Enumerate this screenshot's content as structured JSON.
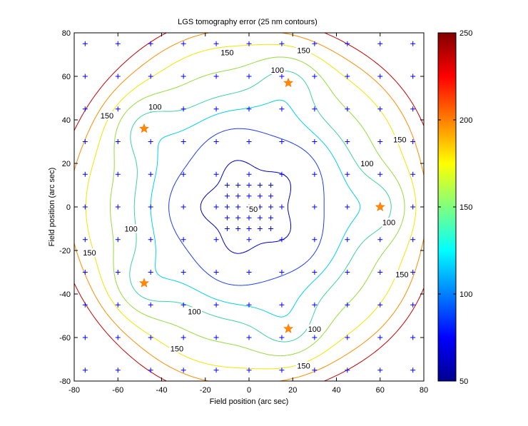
{
  "chart_data": {
    "type": "contour",
    "title": "LGS tomography error (25 nm contours)",
    "xlabel": "Field position (arc sec)",
    "ylabel": "Field position (arc sec)",
    "xlim": [
      -80,
      80
    ],
    "ylim": [
      -80,
      80
    ],
    "xticks": [
      "-80",
      "-60",
      "-40",
      "-20",
      "0",
      "20",
      "40",
      "60",
      "80"
    ],
    "yticks": [
      "-80",
      "-60",
      "-40",
      "-20",
      "0",
      "20",
      "40",
      "60",
      "80"
    ],
    "colorbar": {
      "range": [
        50,
        250
      ],
      "ticks": [
        "50",
        "100",
        "150",
        "200",
        "250"
      ]
    },
    "contour_levels": [
      50,
      75,
      100,
      125,
      150,
      175,
      200,
      225
    ],
    "level_colors": {
      "50": "#0000c8",
      "75": "#1e3cff",
      "100": "#00d2e6",
      "125": "#3cd2a0",
      "150": "#96dc3c",
      "175": "#f0e600",
      "200": "#ff8c00",
      "225": "#c80000"
    },
    "contour_labels": [
      {
        "text": "150",
        "x": -10,
        "y": 71
      },
      {
        "text": "150",
        "x": 25,
        "y": 72
      },
      {
        "text": "100",
        "x": 13,
        "y": 63
      },
      {
        "text": "100",
        "x": -43,
        "y": 46
      },
      {
        "text": "150",
        "x": -65,
        "y": 42
      },
      {
        "text": "150",
        "x": 69,
        "y": 31
      },
      {
        "text": "100",
        "x": 54,
        "y": 20
      },
      {
        "text": "50",
        "x": 2,
        "y": -1
      },
      {
        "text": "100",
        "x": 64,
        "y": -7
      },
      {
        "text": "100",
        "x": -54,
        "y": -10
      },
      {
        "text": "150",
        "x": -73,
        "y": -21
      },
      {
        "text": "150",
        "x": 70,
        "y": -31
      },
      {
        "text": "100",
        "x": -25,
        "y": -48
      },
      {
        "text": "100",
        "x": 30,
        "y": -56
      },
      {
        "text": "150",
        "x": -33,
        "y": -65
      },
      {
        "text": "150",
        "x": 25,
        "y": -73
      }
    ],
    "lgs_stars": [
      {
        "x": 18,
        "y": 57
      },
      {
        "x": -48,
        "y": 36
      },
      {
        "x": 60,
        "y": 0
      },
      {
        "x": -48,
        "y": -35
      },
      {
        "x": 18,
        "y": -56
      }
    ],
    "evaluation_grid": {
      "outer_coords": [
        -75,
        -60,
        -45,
        -30,
        -15,
        0,
        15,
        30,
        45,
        60,
        75
      ],
      "inner_coords": [
        -10,
        -5,
        0,
        5,
        10
      ]
    },
    "marker_colors": {
      "grid": "#0000ff",
      "star": "#ff8c00"
    }
  }
}
